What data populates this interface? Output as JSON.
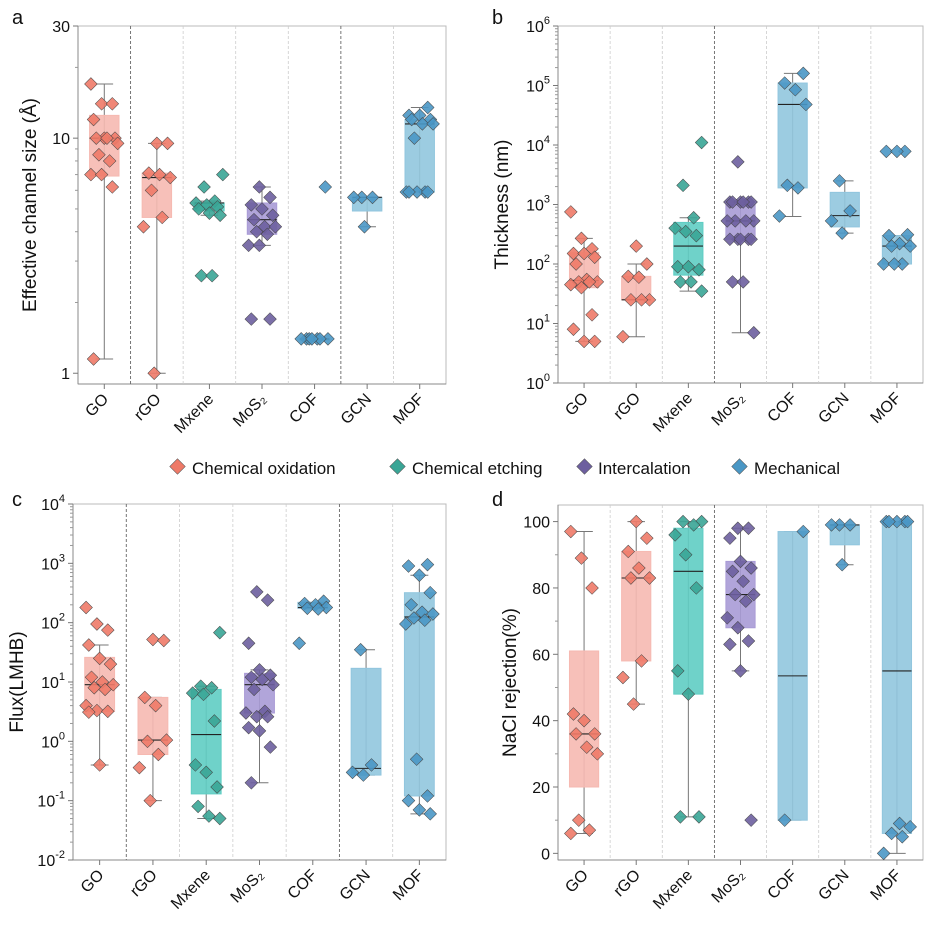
{
  "legend": {
    "placement": "center",
    "items": [
      {
        "label": "Chemical oxidation",
        "color": "#ee7a68"
      },
      {
        "label": "Chemical etching",
        "color": "#3aa596"
      },
      {
        "label": "Intercalation",
        "color": "#6d5f9f"
      },
      {
        "label": "Mechanical",
        "color": "#4a97c5"
      }
    ]
  },
  "methods": {
    "oxidation": {
      "point": "#ee7a68",
      "box": "#f6b9b1"
    },
    "etching": {
      "point": "#3aa596",
      "box": "#5fcdc3"
    },
    "intercalation": {
      "point": "#6d5f9f",
      "box": "#a99bd6"
    },
    "mechanical": {
      "point": "#4a97c5",
      "box": "#91c6de"
    }
  },
  "categories": [
    "GO",
    "rGO",
    "Mxene",
    "MoS₂",
    "COF",
    "GCN",
    "MOF"
  ],
  "category_methods": [
    "oxidation",
    "oxidation",
    "etching",
    "intercalation",
    "mechanical",
    "mechanical",
    "mechanical"
  ],
  "chart_data": [
    {
      "panel": "a",
      "type": "box",
      "ylabel": "Effective channel size (Å)",
      "yscale": "log",
      "ylim": [
        0.9,
        30
      ],
      "yticks": [
        1,
        10,
        30
      ],
      "tick_format": "plain",
      "grid": false,
      "groups": [
        {
          "box": [
            6.9,
            10,
            12.5
          ],
          "whisker": [
            1.15,
            17
          ],
          "points": [
            17,
            14,
            14,
            12,
            10,
            10,
            10,
            10,
            9.5,
            8.5,
            8,
            7,
            7,
            6.2,
            1.15
          ]
        },
        {
          "box": [
            4.6,
            6.8,
            7.1
          ],
          "whisker": [
            1,
            9.5
          ],
          "points": [
            9.5,
            9.5,
            7.1,
            7,
            6.8,
            6,
            4.6,
            4.2,
            1
          ]
        },
        {
          "box": [
            4.9,
            5.3,
            5.3
          ],
          "whisker": [
            4.7,
            5.4
          ],
          "points": [
            7,
            6.2,
            5.4,
            5.3,
            5.2,
            5.1,
            5.0,
            4.8,
            4.7,
            2.6,
            2.6
          ]
        },
        {
          "box": [
            3.9,
            4.5,
            5.3
          ],
          "whisker": [
            3.5,
            6.2
          ],
          "points": [
            6.2,
            5.6,
            5.2,
            5.0,
            4.7,
            4.5,
            4.2,
            4.2,
            4.0,
            3.9,
            3.5,
            3.5,
            1.7,
            1.7
          ]
        },
        {
          "box": [
            1.4,
            1.4,
            1.4
          ],
          "whisker": [
            1.4,
            1.4
          ],
          "points": [
            6.2,
            1.4,
            1.4,
            1.4,
            1.4,
            1.4,
            1.4,
            1.4
          ]
        },
        {
          "box": [
            4.9,
            5.6,
            5.6
          ],
          "whisker": [
            4.2,
            5.6
          ],
          "points": [
            5.6,
            5.6,
            5.6,
            4.2
          ]
        },
        {
          "box": [
            5.9,
            11.5,
            12
          ],
          "whisker": [
            5.9,
            13.5
          ],
          "points": [
            13.5,
            12.5,
            12.5,
            12,
            12,
            11.5,
            11.5,
            10,
            5.9,
            5.9,
            5.9,
            5.9,
            5.9
          ]
        }
      ]
    },
    {
      "panel": "b",
      "type": "box",
      "ylabel": "Thickness (nm)",
      "yscale": "log",
      "ylim": [
        1,
        1000000
      ],
      "yticks": [
        1,
        10,
        100,
        1000,
        10000,
        100000,
        1000000
      ],
      "tick_format": "power",
      "grid": false,
      "groups": [
        {
          "box": [
            40,
            53,
            155
          ],
          "whisker": [
            5,
            270
          ],
          "points": [
            750,
            270,
            180,
            150,
            150,
            130,
            100,
            55,
            50,
            50,
            50,
            45,
            40,
            14,
            8,
            5,
            5
          ]
        },
        {
          "box": [
            25,
            25,
            62
          ],
          "whisker": [
            6,
            100
          ],
          "points": [
            200,
            100,
            62,
            60,
            25,
            25,
            25,
            6
          ]
        },
        {
          "box": [
            65,
            200,
            500
          ],
          "whisker": [
            35,
            600
          ],
          "points": [
            11000,
            2100,
            600,
            400,
            350,
            300,
            90,
            90,
            80,
            50,
            50,
            35
          ]
        },
        {
          "box": [
            260,
            530,
            1000
          ],
          "whisker": [
            7,
            1100
          ],
          "points": [
            5200,
            1100,
            1100,
            1100,
            1100,
            1100,
            1100,
            530,
            530,
            530,
            530,
            260,
            260,
            260,
            260,
            260,
            50,
            50,
            7
          ]
        },
        {
          "box": [
            1900,
            48000,
            110000
          ],
          "whisker": [
            630,
            160000
          ],
          "points": [
            160000,
            110000,
            85000,
            48000,
            2100,
            1900,
            640
          ]
        },
        {
          "box": [
            420,
            650,
            1600
          ],
          "whisker": [
            330,
            2500
          ],
          "points": [
            2500,
            780,
            530,
            330
          ]
        },
        {
          "box": [
            100,
            200,
            300
          ],
          "whisker": [
            100,
            300
          ],
          "points": [
            7800,
            7800,
            7800,
            310,
            300,
            220,
            200,
            200,
            100,
            100,
            100
          ]
        }
      ]
    },
    {
      "panel": "c",
      "type": "box",
      "ylabel": "Flux(LMHB)",
      "yscale": "log",
      "ylim": [
        0.01,
        10000
      ],
      "yticks": [
        0.01,
        0.1,
        1,
        10,
        100,
        1000,
        10000
      ],
      "tick_format": "power",
      "grid": false,
      "groups": [
        {
          "box": [
            3.2,
            9,
            26
          ],
          "whisker": [
            0.4,
            42
          ],
          "points": [
            180,
            95,
            75,
            42,
            25,
            20,
            12,
            10,
            9,
            8,
            7.5,
            4,
            3.3,
            3.2,
            3.1,
            0.4
          ]
        },
        {
          "box": [
            0.6,
            1.05,
            5.5
          ],
          "whisker": [
            0.1,
            5.5
          ],
          "points": [
            52,
            50,
            5.5,
            4,
            1.05,
            1.0,
            0.6,
            0.36,
            0.1
          ]
        },
        {
          "box": [
            0.13,
            1.3,
            7.5
          ],
          "whisker": [
            0.05,
            8.5
          ],
          "points": [
            68,
            8.5,
            8,
            6.5,
            6.2,
            2.2,
            0.4,
            0.3,
            0.17,
            0.08,
            0.055,
            0.05
          ]
        },
        {
          "box": [
            3,
            9,
            14
          ],
          "whisker": [
            0.2,
            16
          ],
          "points": [
            330,
            240,
            45,
            16,
            13,
            12,
            11,
            9,
            7.5,
            3.2,
            3.0,
            2.6,
            2.6,
            1.7,
            1.5,
            0.8,
            0.2
          ]
        },
        {
          "box": [
            175,
            180,
            220
          ],
          "whisker": [
            175,
            220
          ],
          "points": [
            230,
            210,
            200,
            180,
            175,
            170,
            45
          ]
        },
        {
          "box": [
            0.27,
            0.35,
            17
          ],
          "whisker": [
            0.27,
            35
          ],
          "points": [
            35,
            0.4,
            0.3,
            0.27
          ]
        },
        {
          "box": [
            0.12,
            125,
            320
          ],
          "whisker": [
            0.06,
            630
          ],
          "points": [
            950,
            900,
            630,
            320,
            200,
            150,
            140,
            120,
            110,
            95,
            0.5,
            0.12,
            0.1,
            0.07,
            0.06
          ]
        }
      ]
    },
    {
      "panel": "d",
      "type": "box",
      "ylabel": "NaCl rejection(%)",
      "yscale": "linear",
      "ylim": [
        -2,
        105
      ],
      "yticks": [
        0,
        20,
        40,
        60,
        80,
        100
      ],
      "tick_format": "plain",
      "grid": false,
      "groups": [
        {
          "box": [
            20,
            36,
            61
          ],
          "whisker": [
            6,
            97
          ],
          "points": [
            97,
            89,
            80,
            42,
            40,
            36,
            36,
            32,
            30,
            10,
            7,
            6
          ]
        },
        {
          "box": [
            58,
            83,
            91
          ],
          "whisker": [
            45,
            100
          ],
          "points": [
            100,
            95,
            91,
            86,
            83,
            83,
            58,
            53,
            45
          ]
        },
        {
          "box": [
            48,
            85,
            98
          ],
          "whisker": [
            11,
            100
          ],
          "points": [
            100,
            100,
            99,
            96,
            90,
            80,
            55,
            48,
            11,
            11
          ]
        },
        {
          "box": [
            68,
            78,
            88
          ],
          "whisker": [
            55,
            98
          ],
          "points": [
            98,
            98,
            95,
            88,
            86,
            85,
            82,
            78,
            78,
            76,
            71,
            68,
            64,
            63,
            55,
            10
          ]
        },
        {
          "box": [
            10,
            53.5,
            97
          ],
          "whisker": [
            10,
            97
          ],
          "points": [
            97,
            10
          ]
        },
        {
          "box": [
            93,
            99,
            99
          ],
          "whisker": [
            87,
            99
          ],
          "points": [
            99,
            99,
            99,
            87
          ]
        },
        {
          "box": [
            6,
            55,
            100
          ],
          "whisker": [
            0,
            100
          ],
          "points": [
            100,
            100,
            100,
            100,
            100,
            9,
            8,
            6,
            5,
            0
          ]
        }
      ]
    }
  ]
}
